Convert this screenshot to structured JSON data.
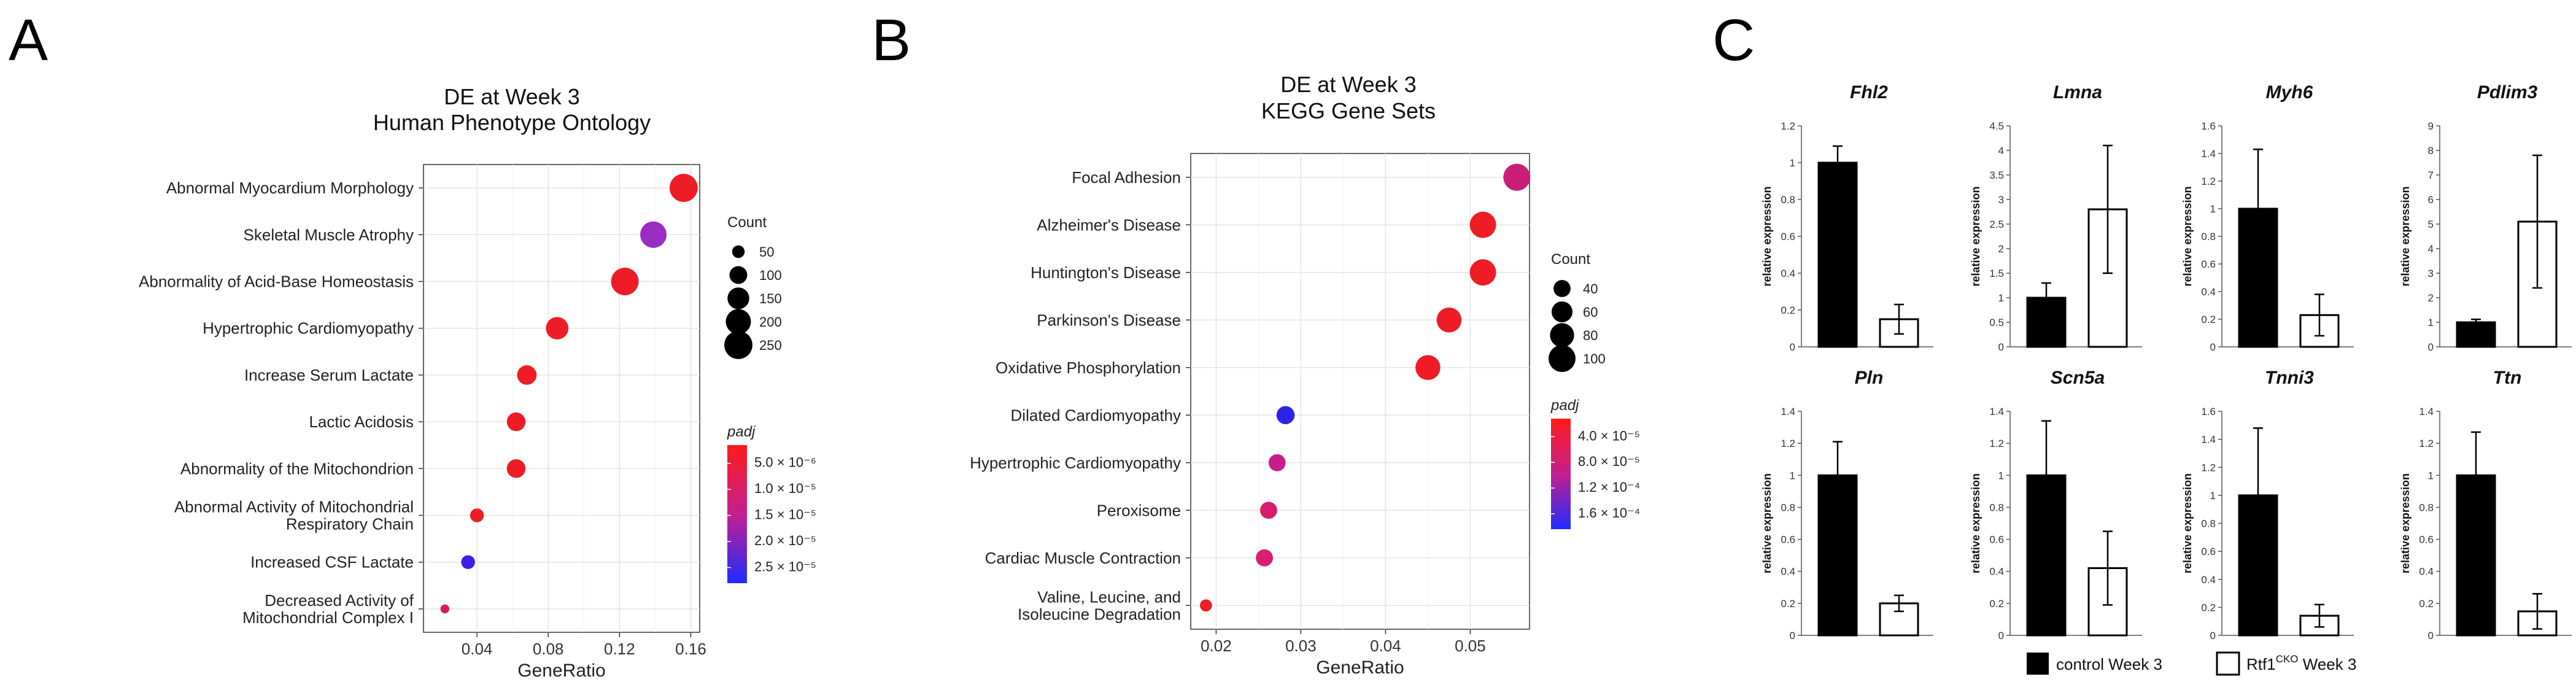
{
  "panel_labels": [
    "A",
    "B",
    "C"
  ],
  "chart_data": [
    {
      "type": "scatter",
      "panel": "A",
      "title": "DE at Week 3",
      "subtitle": "Human Phenotype Ontology",
      "xlabel": "GeneRatio",
      "xlim": [
        0.01,
        0.165
      ],
      "xticks": [
        0.04,
        0.08,
        0.12,
        0.16
      ],
      "xtick_labels": [
        "0.04",
        "0.08",
        "0.12",
        "0.16"
      ],
      "categories": [
        [
          "Abnormal Myocardium Morphology"
        ],
        [
          "Skeletal Muscle Atrophy"
        ],
        [
          "Abnormality of Acid-Base Homeostasis"
        ],
        [
          "Hypertrophic Cardiomyopathy"
        ],
        [
          "Increase Serum Lactate"
        ],
        [
          "Lactic Acidosis"
        ],
        [
          "Abnormality of the Mitochondrion"
        ],
        [
          "Abnormal Activity of Mitochondrial",
          "Respiratory Chain"
        ],
        [
          "Increased CSF Lactate"
        ],
        [
          "Decreased Activity of",
          "Mitochondrial Complex I"
        ]
      ],
      "x": [
        0.156,
        0.139,
        0.123,
        0.085,
        0.068,
        0.062,
        0.062,
        0.04,
        0.035,
        0.022
      ],
      "count": [
        250,
        220,
        240,
        160,
        120,
        110,
        110,
        60,
        60,
        25
      ],
      "padj_color": [
        "#ee1c25",
        "#9b2bc2",
        "#ee1c25",
        "#ee1c25",
        "#ee1c25",
        "#ee1c25",
        "#ee1c25",
        "#ee1c25",
        "#3b20e8",
        "#d81e5a"
      ],
      "size_legend": {
        "title": "Count",
        "values": [
          50,
          100,
          150,
          200,
          250
        ],
        "labels": [
          "50",
          "100",
          "150",
          "200",
          "250"
        ]
      },
      "color_legend": {
        "title": "padj",
        "labels": [
          "5.0 × 10⁻⁶",
          "1.0 × 10⁻⁵",
          "1.5 × 10⁻⁵",
          "2.0 × 10⁻⁵",
          "2.5 × 10⁻⁵"
        ]
      }
    },
    {
      "type": "scatter",
      "panel": "B",
      "title": "DE at Week 3",
      "subtitle": "KEGG Gene Sets",
      "xlabel": "GeneRatio",
      "xlim": [
        0.017,
        0.057
      ],
      "xticks": [
        0.02,
        0.03,
        0.04,
        0.05
      ],
      "xtick_labels": [
        "0.02",
        "0.03",
        "0.04",
        "0.05"
      ],
      "categories": [
        [
          "Focal Adhesion"
        ],
        [
          "Alzheimer's Disease"
        ],
        [
          "Huntington's Disease"
        ],
        [
          "Parkinson's Disease"
        ],
        [
          "Oxidative Phosphorylation"
        ],
        [
          "Dilated Cardiomyopathy"
        ],
        [
          "Hypertrophic Cardiomyopathy"
        ],
        [
          "Peroxisome"
        ],
        [
          "Cardiac Muscle Contraction"
        ],
        [
          "Valine, Leucine, and",
          "Isoleucine Degradation"
        ]
      ],
      "x": [
        0.0555,
        0.0515,
        0.0515,
        0.0475,
        0.045,
        0.0282,
        0.0272,
        0.0262,
        0.0257,
        0.0188
      ],
      "count": [
        100,
        95,
        95,
        85,
        85,
        45,
        40,
        40,
        40,
        20
      ],
      "padj_color": [
        "#c81e78",
        "#ee1c25",
        "#ee1c25",
        "#ee1c25",
        "#ee1c25",
        "#2a22e6",
        "#c81e8c",
        "#d81e6e",
        "#d81e6e",
        "#ee1c25"
      ],
      "size_legend": {
        "title": "Count",
        "values": [
          40,
          60,
          80,
          100
        ],
        "labels": [
          "40",
          "60",
          "80",
          "100"
        ]
      },
      "color_legend": {
        "title": "padj",
        "labels": [
          "4.0 × 10⁻⁵",
          "8.0 × 10⁻⁵",
          "1.2 × 10⁻⁴",
          "1.6 × 10⁻⁴"
        ]
      }
    },
    {
      "type": "bar",
      "panel": "C",
      "ylabel": "relative expression",
      "series": [
        "control Week 3",
        "Rtf1 Week 3"
      ],
      "legend": {
        "control_label": "control Week 3",
        "cko_prefix": "Rtf1",
        "cko_superscript": "CKO",
        "cko_suffix": " Week 3"
      },
      "genes": [
        {
          "name": "Fhl2",
          "ylim": [
            0,
            1.2
          ],
          "yticks": [
            "0",
            "0.2",
            "0.4",
            "0.6",
            "0.8",
            "1",
            "1.2"
          ],
          "values": [
            1.0,
            0.15
          ],
          "errors": [
            0.09,
            0.08
          ]
        },
        {
          "name": "Lmna",
          "ylim": [
            0,
            4.5
          ],
          "yticks": [
            "0",
            "0.5",
            "1",
            "1.5",
            "2",
            "2.5",
            "3",
            "3.5",
            "4",
            "4.5"
          ],
          "values": [
            1.0,
            2.8
          ],
          "errors": [
            0.3,
            1.3
          ]
        },
        {
          "name": "Myh6",
          "ylim": [
            0,
            1.6
          ],
          "yticks": [
            "0",
            "0.2",
            "0.4",
            "0.6",
            "0.8",
            "1",
            "1.2",
            "1.4",
            "1.6"
          ],
          "values": [
            1.0,
            0.23
          ],
          "errors": [
            0.43,
            0.15
          ]
        },
        {
          "name": "Pdlim3",
          "ylim": [
            0,
            9
          ],
          "yticks": [
            "0",
            "1",
            "2",
            "3",
            "4",
            "5",
            "6",
            "7",
            "8",
            "9"
          ],
          "values": [
            1.0,
            5.1
          ],
          "errors": [
            0.12,
            2.7
          ]
        },
        {
          "name": "Pln",
          "ylim": [
            0,
            1.4
          ],
          "yticks": [
            "0",
            "0.2",
            "0.4",
            "0.6",
            "0.8",
            "1",
            "1.2",
            "1.4"
          ],
          "values": [
            1.0,
            0.2
          ],
          "errors": [
            0.21,
            0.05
          ]
        },
        {
          "name": "Scn5a",
          "ylim": [
            0,
            1.4
          ],
          "yticks": [
            "0",
            "0.2",
            "0.4",
            "0.6",
            "0.8",
            "1",
            "1.2",
            "1.4"
          ],
          "values": [
            1.0,
            0.42
          ],
          "errors": [
            0.34,
            0.23
          ]
        },
        {
          "name": "Tnni3",
          "ylim": [
            0,
            1.6
          ],
          "yticks": [
            "0",
            "0.2",
            "0.4",
            "0.6",
            "0.8",
            "1",
            "1.2",
            "1.4",
            "1.6"
          ],
          "values": [
            1.0,
            0.14
          ],
          "errors": [
            0.48,
            0.08
          ]
        },
        {
          "name": "Ttn",
          "ylim": [
            0,
            1.4
          ],
          "yticks": [
            "0",
            "0.2",
            "0.4",
            "0.6",
            "0.8",
            "1",
            "1.2",
            "1.4"
          ],
          "values": [
            1.0,
            0.15
          ],
          "errors": [
            0.27,
            0.11
          ]
        }
      ]
    }
  ]
}
